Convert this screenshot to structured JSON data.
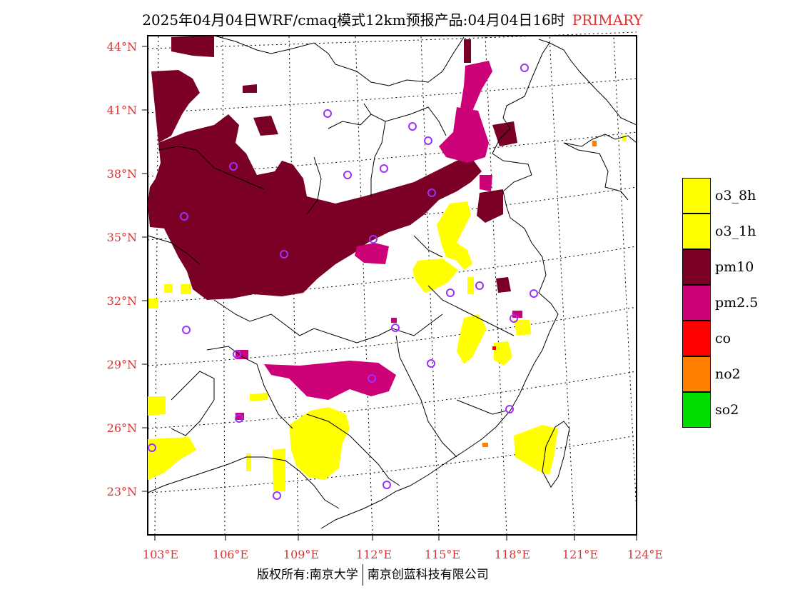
{
  "title": {
    "main": "2025年04月04日WRF/cmaq模式12km预报产品:04月04日16时",
    "tag": "PRIMARY"
  },
  "lat_labels": [
    "44°N",
    "41°N",
    "38°N",
    "35°N",
    "32°N",
    "29°N",
    "26°N",
    "23°N"
  ],
  "lon_labels": [
    "103°E",
    "106°E",
    "109°E",
    "112°E",
    "115°E",
    "118°E",
    "121°E",
    "124°E"
  ],
  "legend": [
    {
      "label": "o3_8h",
      "color": "#ffff00"
    },
    {
      "label": "o3_1h",
      "color": "#ffff00"
    },
    {
      "label": "pm10",
      "color": "#7a0026"
    },
    {
      "label": "pm2.5",
      "color": "#cc0077"
    },
    {
      "label": "co",
      "color": "#ff0000"
    },
    {
      "label": "no2",
      "color": "#ff7f00"
    },
    {
      "label": "so2",
      "color": "#00dd00"
    }
  ],
  "footer": {
    "left": "版权所有:南京大学",
    "right": "南京创蓝科技有限公司"
  }
}
